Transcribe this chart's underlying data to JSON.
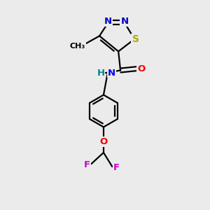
{
  "background_color": "#ebebeb",
  "bond_color": "#000000",
  "bond_width": 1.6,
  "atom_colors": {
    "N_blue": "#0000ee",
    "N_ring": "#0000cc",
    "S": "#aaaa00",
    "O_red": "#ee0000",
    "F": "#cc00cc",
    "C": "#000000",
    "H_teal": "#008888"
  },
  "font_size": 9.5,
  "fig_size": [
    3.0,
    3.0
  ],
  "dpi": 100,
  "xlim": [
    0,
    10
  ],
  "ylim": [
    0,
    10
  ]
}
